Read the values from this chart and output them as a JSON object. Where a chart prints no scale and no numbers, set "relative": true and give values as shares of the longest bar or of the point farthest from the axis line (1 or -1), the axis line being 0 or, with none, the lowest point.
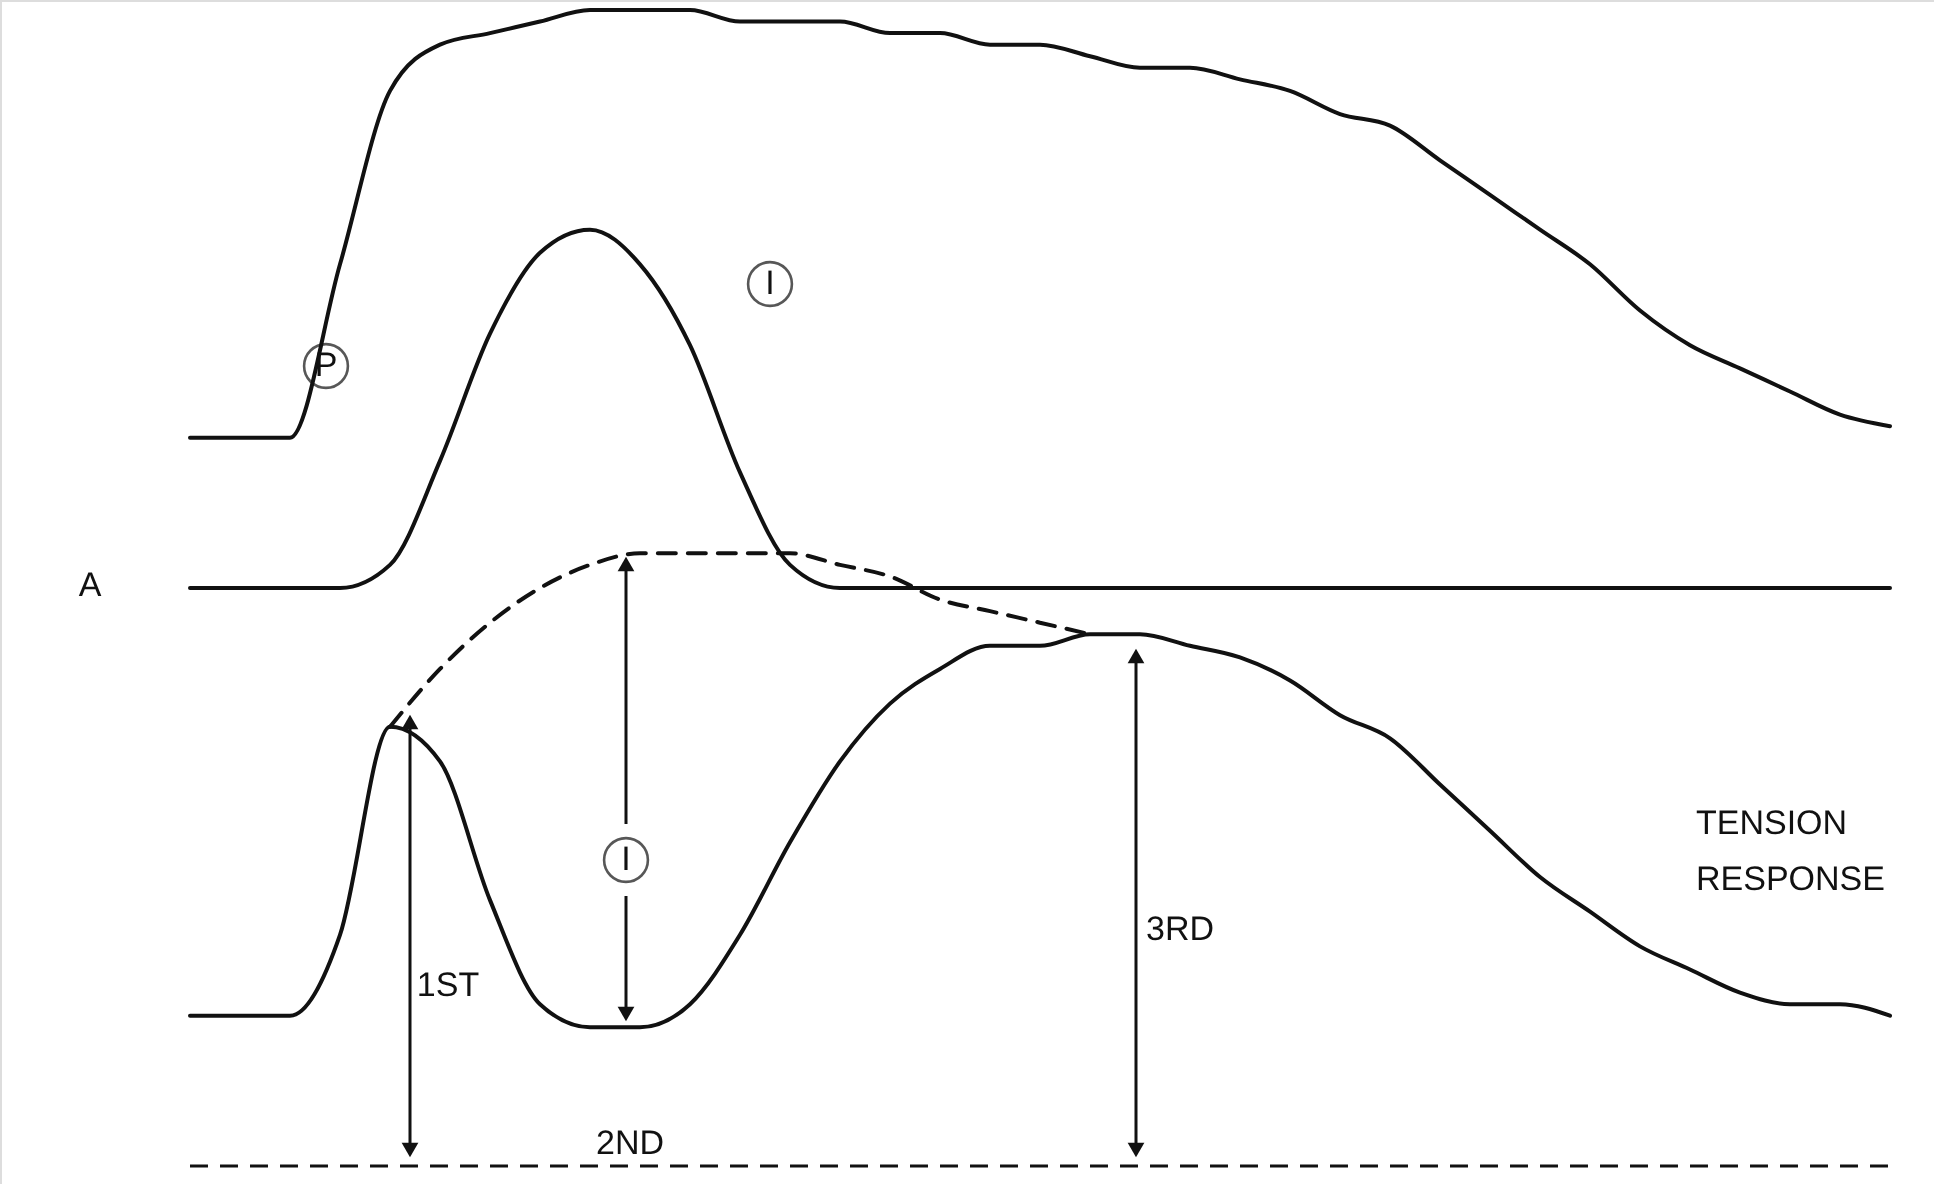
{
  "chart_data": {
    "type": "line",
    "relative": true,
    "categories": [
      null,
      null,
      null,
      null,
      null,
      null,
      null,
      null,
      null,
      null,
      null,
      null,
      null,
      null,
      null,
      null,
      null,
      null,
      null,
      null,
      null,
      null,
      null,
      null,
      null,
      null,
      null,
      null,
      null,
      null,
      null,
      null,
      null,
      null,
      null
    ],
    "series": [
      {
        "name": "P",
        "color": "#111111",
        "line_style": "solid",
        "values": [
          0.63,
          0.63,
          0.63,
          0.78,
          0.93,
          0.97,
          0.98,
          0.99,
          1,
          1,
          1,
          0.99,
          0.99,
          0.99,
          0.98,
          0.98,
          0.97,
          0.97,
          0.96,
          0.95,
          0.95,
          0.94,
          0.93,
          0.91,
          0.9,
          0.87,
          0.84,
          0.81,
          0.78,
          0.74,
          0.71,
          0.69,
          0.67,
          0.65,
          0.64
        ]
      },
      {
        "name": "I",
        "color": "#111111",
        "line_style": "solid",
        "values": [
          0.5,
          0.5,
          0.5,
          0.5,
          0.52,
          0.61,
          0.72,
          0.79,
          0.81,
          0.78,
          0.71,
          0.6,
          0.52,
          0.5,
          0.5,
          0.5,
          0.5,
          0.5,
          0.5,
          0.5,
          0.5,
          0.5,
          0.5,
          0.5,
          0.5,
          0.5,
          0.5,
          0.5,
          0.5,
          0.5,
          0.5,
          0.5,
          0.5,
          0.5,
          0.5
        ]
      },
      {
        "name": "TENSION RESPONSE",
        "color": "#111111",
        "line_style": "solid",
        "values": [
          0.13,
          0.13,
          0.13,
          0.2,
          0.38,
          0.35,
          0.23,
          0.14,
          0.12,
          0.12,
          0.14,
          0.2,
          0.28,
          0.35,
          0.4,
          0.43,
          0.45,
          0.45,
          0.46,
          0.46,
          0.45,
          0.44,
          0.42,
          0.39,
          0.37,
          0.33,
          0.29,
          0.25,
          0.22,
          0.19,
          0.17,
          0.15,
          0.14,
          0.14,
          0.13
        ]
      },
      {
        "color": "#111111",
        "line_style": "dashed",
        "values": [
          null,
          null,
          null,
          null,
          0.38,
          0.43,
          0.47,
          0.5,
          0.52,
          0.53,
          0.53,
          0.53,
          0.53,
          0.52,
          0.51,
          0.49,
          0.48,
          0.47,
          0.46,
          null,
          null,
          null,
          null,
          null,
          null,
          null,
          null,
          null,
          null,
          null,
          null,
          null,
          null,
          null,
          null
        ]
      }
    ],
    "ref_lines": [
      {
        "axis": "y",
        "value": 0,
        "color": "#111111",
        "line_style": "dashed"
      }
    ],
    "annotations": [
      "A",
      "1ST",
      "2ND",
      "3RD",
      "I"
    ]
  }
}
